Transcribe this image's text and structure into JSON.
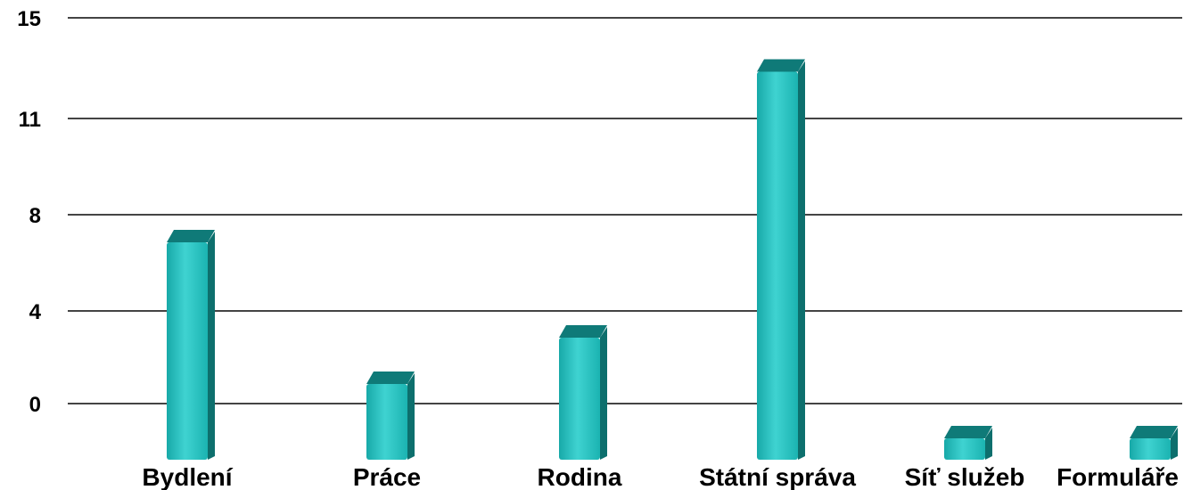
{
  "chart_data": {
    "type": "bar",
    "title": "",
    "xlabel": "",
    "ylabel": "",
    "categories": [
      "Bydlení",
      "Práce",
      "Rodina",
      "Státní správa",
      "Síť služeb",
      "Formuláře"
    ],
    "values": [
      7,
      1,
      3,
      13,
      0,
      0
    ],
    "y_ticks": [
      {
        "value": 0,
        "label": "0"
      },
      {
        "value": 4,
        "label": "4"
      },
      {
        "value": 8,
        "label": "8"
      },
      {
        "value": 11,
        "label": "11"
      },
      {
        "value": 15,
        "label": "15"
      }
    ],
    "ylim": [
      0,
      15
    ],
    "grid": true,
    "legend": "none",
    "colors": {
      "bar_front": "#1fbcbc",
      "bar_front_light": "#3fd3d1",
      "bar_side": "#0d6f6d",
      "bar_top": "#0f7a78",
      "gridline": "#444444"
    }
  }
}
